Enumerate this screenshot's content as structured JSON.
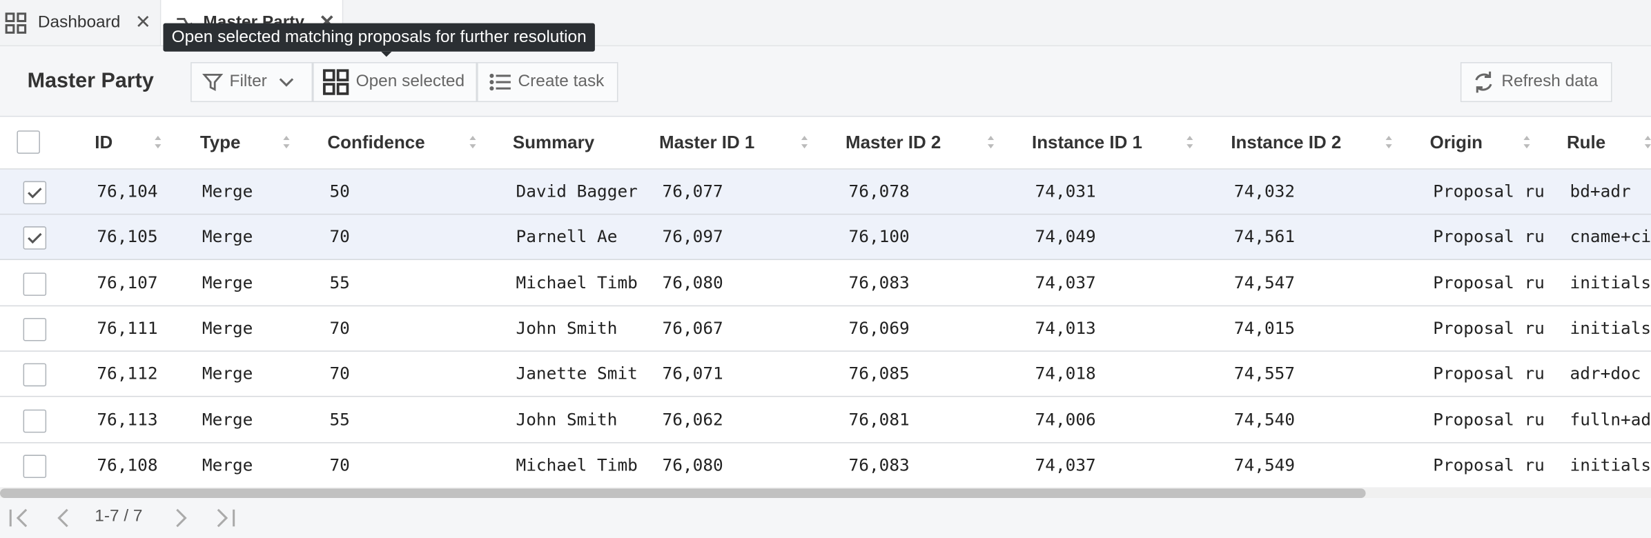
{
  "tabs": [
    {
      "label": "Dashboard"
    },
    {
      "label": "Master Party"
    }
  ],
  "tooltip": "Open selected matching proposals for further resolution",
  "toolbar": {
    "title": "Master Party",
    "buttons": [
      "Filter",
      "Open selected",
      "Create task"
    ],
    "refresh": "Refresh data"
  },
  "table": {
    "columns": [
      {
        "label": "ID",
        "sortable": true
      },
      {
        "label": "Type",
        "sortable": true
      },
      {
        "label": "Confidence",
        "sortable": true
      },
      {
        "label": "Summary",
        "sortable": false
      },
      {
        "label": "Master ID 1",
        "sortable": true
      },
      {
        "label": "Master ID 2",
        "sortable": true
      },
      {
        "label": "Instance ID 1",
        "sortable": true
      },
      {
        "label": "Instance ID 2",
        "sortable": true
      },
      {
        "label": "Origin",
        "sortable": true
      },
      {
        "label": "Rule",
        "sortable": true
      }
    ],
    "selected": [
      true,
      true,
      false,
      false,
      false,
      false,
      false
    ],
    "rows": [
      [
        "76,104",
        "Merge",
        "50",
        "David Bagger",
        "76,077",
        "76,078",
        "74,031",
        "74,032",
        "Proposal ru",
        "bd+adr"
      ],
      [
        "76,105",
        "Merge",
        "70",
        "Parnell Ae",
        "76,097",
        "76,100",
        "74,049",
        "74,561",
        "Proposal ru",
        "cname+ci"
      ],
      [
        "76,107",
        "Merge",
        "55",
        "Michael Timb",
        "76,080",
        "76,083",
        "74,037",
        "74,547",
        "Proposal ru",
        "initials"
      ],
      [
        "76,111",
        "Merge",
        "70",
        "John Smith",
        "76,067",
        "76,069",
        "74,013",
        "74,015",
        "Proposal ru",
        "initials"
      ],
      [
        "76,112",
        "Merge",
        "70",
        "Janette Smit",
        "76,071",
        "76,085",
        "74,018",
        "74,557",
        "Proposal ru",
        "adr+doc"
      ],
      [
        "76,113",
        "Merge",
        "55",
        "John Smith",
        "76,062",
        "76,081",
        "74,006",
        "74,540",
        "Proposal ru",
        "fulln+ad"
      ],
      [
        "76,108",
        "Merge",
        "70",
        "Michael Timb",
        "76,080",
        "76,083",
        "74,037",
        "74,549",
        "Proposal ru",
        "initials"
      ]
    ]
  },
  "pager": "1-7 / 7"
}
